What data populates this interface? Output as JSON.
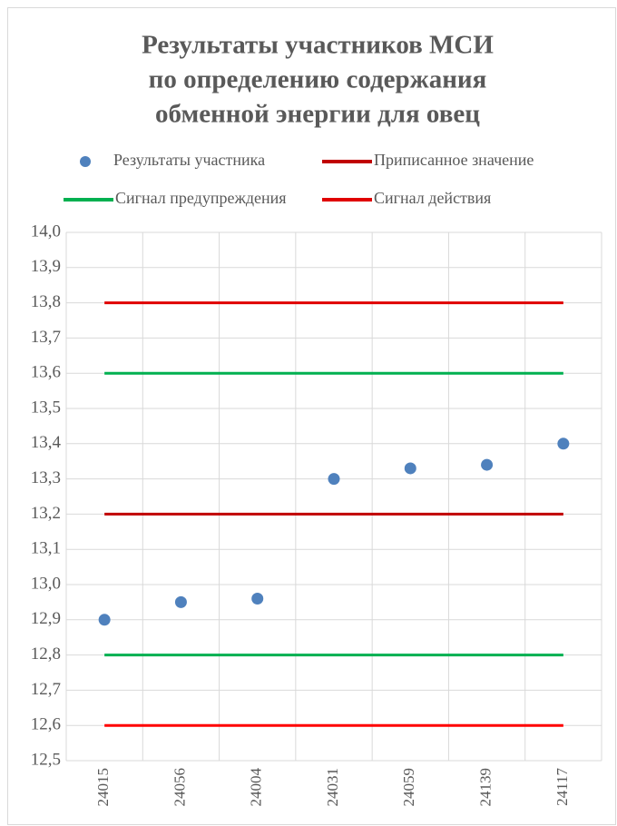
{
  "chart_data": {
    "type": "line",
    "title": [
      "Результаты участников МСИ",
      "по определению содержания",
      "обменной энергии для овец"
    ],
    "categories": [
      "24015",
      "24056",
      "24004",
      "24031",
      "24059",
      "24139",
      "24117"
    ],
    "series": [
      {
        "name": "Результаты участника",
        "color": "#4f81bd",
        "style": "marker",
        "values": [
          12.9,
          12.95,
          12.96,
          13.3,
          13.33,
          13.34,
          13.4
        ]
      },
      {
        "name": "Приписанное значение",
        "color": "#c00000",
        "style": "line",
        "values": [
          13.2,
          13.2,
          13.2,
          13.2,
          13.2,
          13.2,
          13.2
        ]
      },
      {
        "name": "Сигнал предупреждения",
        "color": "#00b050",
        "style": "line",
        "values": [
          13.6,
          13.6,
          13.6,
          13.6,
          13.6,
          13.6,
          13.6
        ]
      },
      {
        "name": "Сигнал действия",
        "color": "#e00000",
        "style": "line",
        "values": [
          13.8,
          13.8,
          13.8,
          13.8,
          13.8,
          13.8,
          13.8
        ]
      },
      {
        "color": "#00b050",
        "style": "line",
        "values": [
          12.8,
          12.8,
          12.8,
          12.8,
          12.8,
          12.8,
          12.8
        ]
      },
      {
        "color": "#ff0000",
        "style": "line",
        "values": [
          12.6,
          12.6,
          12.6,
          12.6,
          12.6,
          12.6,
          12.6
        ]
      }
    ],
    "ylim": [
      12.5,
      14.0
    ],
    "yticks": [
      {
        "value": 12.5,
        "label": "12,5"
      },
      {
        "value": 12.6,
        "label": "12,6"
      },
      {
        "value": 12.7,
        "label": "12,7"
      },
      {
        "value": 12.8,
        "label": "12,8"
      },
      {
        "value": 12.9,
        "label": "12,9"
      },
      {
        "value": 13.0,
        "label": "13,0"
      },
      {
        "value": 13.1,
        "label": "13,1"
      },
      {
        "value": 13.2,
        "label": "13,2"
      },
      {
        "value": 13.3,
        "label": "13,3"
      },
      {
        "value": 13.4,
        "label": "13,4"
      },
      {
        "value": 13.5,
        "label": "13,5"
      },
      {
        "value": 13.6,
        "label": "13,6"
      },
      {
        "value": 13.7,
        "label": "13,7"
      },
      {
        "value": 13.8,
        "label": "13,8"
      },
      {
        "value": 13.9,
        "label": "13,9"
      },
      {
        "value": 14.0,
        "label": "14,0"
      }
    ],
    "grid": true
  }
}
